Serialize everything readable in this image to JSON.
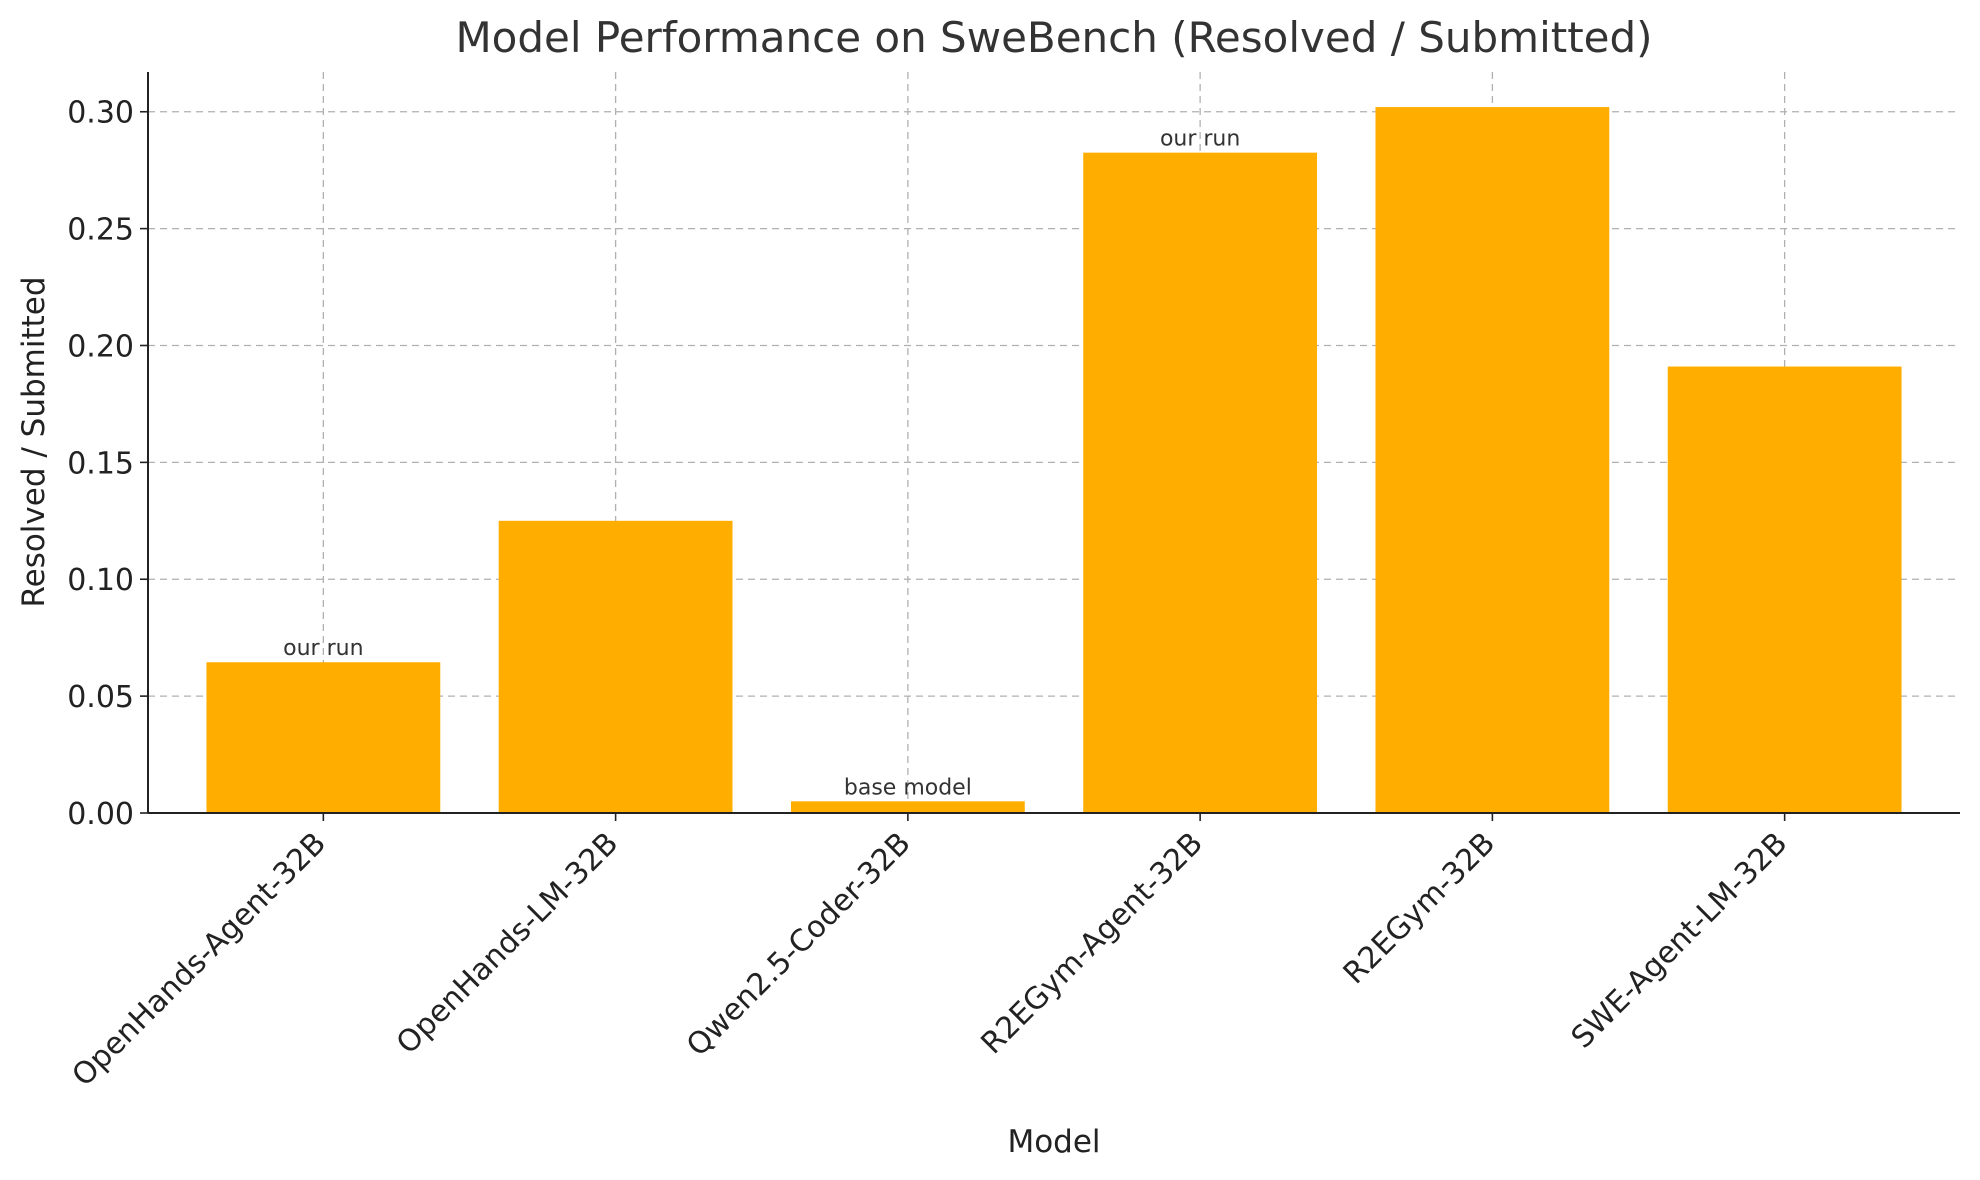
{
  "chart_data": {
    "type": "bar",
    "title": "Model Performance on SweBench (Resolved / Submitted)",
    "xlabel": "Model",
    "ylabel": "Resolved / Submitted",
    "categories": [
      "OpenHands-Agent-32B",
      "OpenHands-LM-32B",
      "Qwen2.5-Coder-32B",
      "R2EGym-Agent-32B",
      "R2EGym-32B",
      "SWE-Agent-LM-32B"
    ],
    "values": [
      0.0645,
      0.125,
      0.005,
      0.2825,
      0.302,
      0.191
    ],
    "annotations": [
      "our run",
      "",
      "base model",
      "our run",
      "",
      ""
    ],
    "ylim": [
      0,
      0.317
    ],
    "yticks": [
      0.0,
      0.05,
      0.1,
      0.15,
      0.2,
      0.25,
      0.3
    ],
    "ytick_labels": [
      "0.00",
      "0.05",
      "0.10",
      "0.15",
      "0.20",
      "0.25",
      "0.30"
    ],
    "grid": true,
    "bar_color": "#ffae00",
    "legend": "none"
  }
}
